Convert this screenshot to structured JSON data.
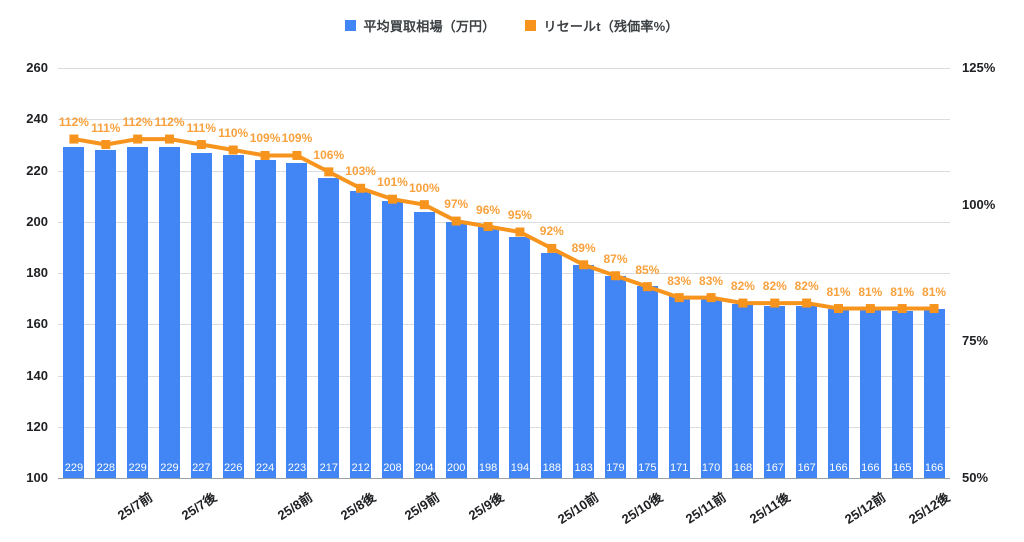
{
  "legend": {
    "bar_label": "平均買取相場（万円）",
    "line_label": "リセールt（残価率%）"
  },
  "colors": {
    "bar": "#4285F4",
    "line": "#F7941E",
    "point_label": "#F9A13C",
    "axis_text": "#202124",
    "grid": "#DADCE0",
    "baseline": "#9AA0A6",
    "bar_value_text": "#FFFFFF"
  },
  "chart_data": {
    "type": "combo",
    "title": "",
    "grid": true,
    "legend_position": "top",
    "series": [
      {
        "name": "平均買取相場（万円）",
        "type": "bar",
        "axis": "left",
        "color": "#4285F4",
        "values": [
          229,
          228,
          229,
          229,
          227,
          226,
          224,
          223,
          217,
          212,
          208,
          204,
          200,
          198,
          194,
          188,
          183,
          179,
          175,
          171,
          170,
          168,
          167,
          167,
          166,
          166,
          165,
          166
        ]
      },
      {
        "name": "リセールt（残価率%）",
        "type": "line",
        "axis": "right",
        "color": "#F7941E",
        "unit": "%",
        "values": [
          112,
          111,
          112,
          112,
          111,
          110,
          109,
          109,
          106,
          103,
          101,
          100,
          97,
          96,
          95,
          92,
          89,
          87,
          85,
          83,
          83,
          82,
          82,
          82,
          81,
          81,
          81,
          81
        ]
      }
    ],
    "x_tick_labels": [
      "25/7前",
      "25/7後",
      "25/8前",
      "25/8後",
      "25/9前",
      "25/9後",
      "25/10前",
      "25/10後",
      "25/11前",
      "25/11後",
      "25/12前",
      "25/12後"
    ],
    "x_tick_point_indices": [
      2,
      4,
      7,
      9,
      11,
      13,
      16,
      18,
      20,
      22,
      25,
      27
    ],
    "left_axis": {
      "min": 100,
      "max": 260,
      "ticks": [
        260,
        240,
        220,
        200,
        180,
        160,
        140,
        120,
        100
      ],
      "suffix": ""
    },
    "right_axis": {
      "min": 50,
      "max": 125,
      "ticks": [
        125,
        100,
        75,
        50
      ],
      "suffix": "%"
    }
  }
}
